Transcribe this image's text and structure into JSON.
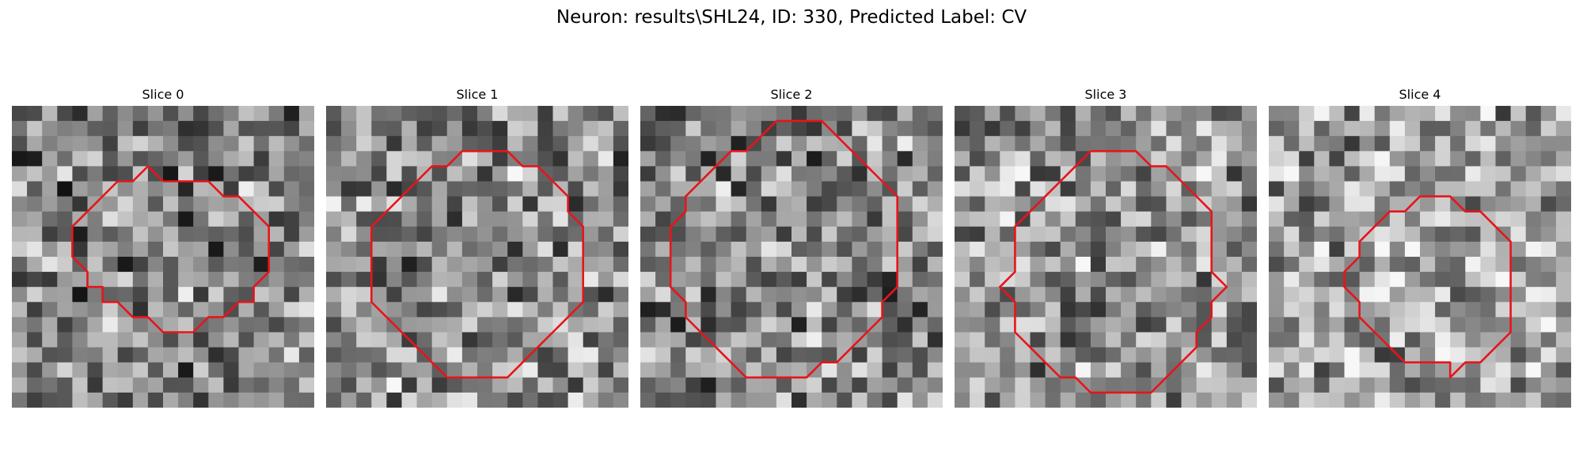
{
  "figure": {
    "title": "Neuron: results\\SHL24, ID: 330, Predicted Label: CV"
  },
  "contour_color": "#e8141b",
  "panels": [
    {
      "title": "Slice 0",
      "contour": [
        [
          10,
          5
        ],
        [
          13,
          5
        ],
        [
          14,
          6
        ],
        [
          15,
          6
        ],
        [
          16,
          7
        ],
        [
          17,
          8
        ],
        [
          17,
          11
        ],
        [
          16,
          12
        ],
        [
          16,
          13
        ],
        [
          15,
          13
        ],
        [
          14,
          14
        ],
        [
          13,
          14
        ],
        [
          12,
          15
        ],
        [
          10,
          15
        ],
        [
          9,
          14
        ],
        [
          8,
          14
        ],
        [
          7,
          13
        ],
        [
          6,
          13
        ],
        [
          6,
          12
        ],
        [
          5,
          12
        ],
        [
          5,
          11
        ],
        [
          4,
          10
        ],
        [
          4,
          9
        ],
        [
          4,
          8
        ],
        [
          5,
          7
        ],
        [
          6,
          6
        ],
        [
          7,
          5
        ],
        [
          8,
          5
        ],
        [
          9,
          4
        ],
        [
          10,
          5
        ]
      ],
      "bg_seed": 11,
      "bg_mean": 0.5
    },
    {
      "title": "Slice 1",
      "contour": [
        [
          10,
          3
        ],
        [
          12,
          3
        ],
        [
          13,
          4
        ],
        [
          14,
          4
        ],
        [
          15,
          5
        ],
        [
          16,
          6
        ],
        [
          16,
          7
        ],
        [
          17,
          8
        ],
        [
          17,
          10
        ],
        [
          17,
          13
        ],
        [
          16,
          14
        ],
        [
          15,
          15
        ],
        [
          14,
          16
        ],
        [
          13,
          17
        ],
        [
          12,
          18
        ],
        [
          10,
          18
        ],
        [
          9,
          18
        ],
        [
          8,
          18
        ],
        [
          7,
          17
        ],
        [
          6,
          16
        ],
        [
          5,
          15
        ],
        [
          4,
          14
        ],
        [
          3,
          13
        ],
        [
          3,
          10
        ],
        [
          3,
          8
        ],
        [
          4,
          7
        ],
        [
          5,
          6
        ],
        [
          6,
          5
        ],
        [
          7,
          4
        ],
        [
          8,
          4
        ],
        [
          9,
          3
        ],
        [
          10,
          3
        ]
      ],
      "bg_seed": 23,
      "bg_mean": 0.55
    },
    {
      "title": "Slice 2",
      "contour": [
        [
          9,
          1
        ],
        [
          12,
          1
        ],
        [
          13,
          2
        ],
        [
          14,
          3
        ],
        [
          15,
          4
        ],
        [
          16,
          5
        ],
        [
          17,
          6
        ],
        [
          17,
          9
        ],
        [
          17,
          12
        ],
        [
          16,
          13
        ],
        [
          16,
          14
        ],
        [
          15,
          15
        ],
        [
          14,
          16
        ],
        [
          13,
          17
        ],
        [
          12,
          17
        ],
        [
          11,
          18
        ],
        [
          9,
          18
        ],
        [
          7,
          18
        ],
        [
          6,
          17
        ],
        [
          5,
          16
        ],
        [
          4,
          15
        ],
        [
          3,
          14
        ],
        [
          3,
          13
        ],
        [
          2,
          12
        ],
        [
          2,
          10
        ],
        [
          2,
          8
        ],
        [
          3,
          7
        ],
        [
          3,
          6
        ],
        [
          4,
          5
        ],
        [
          5,
          4
        ],
        [
          6,
          3
        ],
        [
          7,
          3
        ],
        [
          8,
          2
        ],
        [
          9,
          1
        ]
      ],
      "bg_seed": 37,
      "bg_mean": 0.52
    },
    {
      "title": "Slice 3",
      "contour": [
        [
          9,
          3
        ],
        [
          12,
          3
        ],
        [
          13,
          4
        ],
        [
          14,
          4
        ],
        [
          15,
          5
        ],
        [
          16,
          6
        ],
        [
          17,
          7
        ],
        [
          17,
          9
        ],
        [
          17,
          11
        ],
        [
          18,
          12
        ],
        [
          17,
          13
        ],
        [
          17,
          14
        ],
        [
          16,
          15
        ],
        [
          16,
          16
        ],
        [
          15,
          17
        ],
        [
          14,
          18
        ],
        [
          13,
          19
        ],
        [
          11,
          19
        ],
        [
          9,
          19
        ],
        [
          8,
          18
        ],
        [
          7,
          18
        ],
        [
          6,
          17
        ],
        [
          5,
          16
        ],
        [
          4,
          15
        ],
        [
          4,
          13
        ],
        [
          3,
          12
        ],
        [
          4,
          11
        ],
        [
          4,
          9
        ],
        [
          4,
          8
        ],
        [
          5,
          7
        ],
        [
          6,
          6
        ],
        [
          7,
          5
        ],
        [
          8,
          4
        ],
        [
          9,
          3
        ]
      ],
      "bg_seed": 53,
      "bg_mean": 0.58
    },
    {
      "title": "Slice 4",
      "contour": [
        [
          10,
          6
        ],
        [
          12,
          6
        ],
        [
          13,
          7
        ],
        [
          14,
          7
        ],
        [
          15,
          8
        ],
        [
          16,
          9
        ],
        [
          16,
          10
        ],
        [
          16,
          13
        ],
        [
          16,
          15
        ],
        [
          15,
          16
        ],
        [
          14,
          17
        ],
        [
          13,
          17
        ],
        [
          12,
          18
        ],
        [
          12,
          17
        ],
        [
          11,
          17
        ],
        [
          10,
          17
        ],
        [
          9,
          17
        ],
        [
          8,
          16
        ],
        [
          7,
          15
        ],
        [
          6,
          14
        ],
        [
          6,
          13
        ],
        [
          5,
          12
        ],
        [
          5,
          11
        ],
        [
          6,
          10
        ],
        [
          6,
          9
        ],
        [
          7,
          8
        ],
        [
          8,
          7
        ],
        [
          9,
          7
        ],
        [
          10,
          6
        ]
      ],
      "bg_seed": 71,
      "bg_mean": 0.62
    }
  ]
}
